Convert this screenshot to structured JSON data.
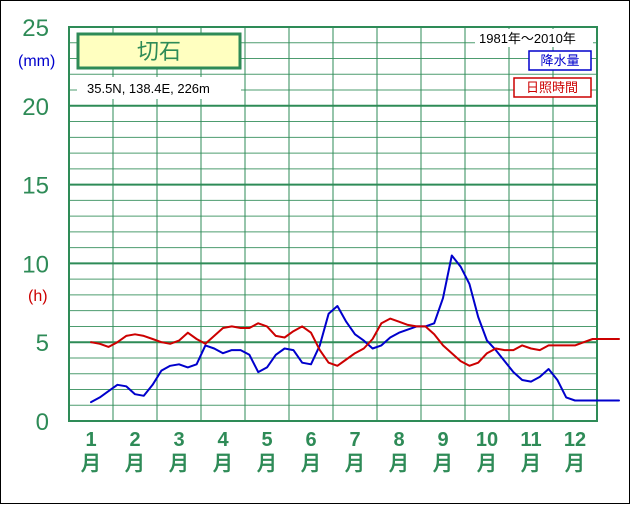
{
  "chart_data": {
    "type": "line",
    "title": "切石",
    "location": "35.5N,  138.4E,  226m",
    "period": "1981年〜2010年",
    "y_units": [
      "(mm)",
      "(h)"
    ],
    "ylim": [
      0,
      25
    ],
    "yticks": [
      "0",
      "5",
      "10",
      "15",
      "20",
      "25"
    ],
    "categories": [
      [
        "1",
        "月"
      ],
      [
        "2",
        "月"
      ],
      [
        "3",
        "月"
      ],
      [
        "4",
        "月"
      ],
      [
        "5",
        "月"
      ],
      [
        "6",
        "月"
      ],
      [
        "7",
        "月"
      ],
      [
        "8",
        "月"
      ],
      [
        "9",
        "月"
      ],
      [
        "10",
        "月"
      ],
      [
        "11",
        "月"
      ],
      [
        "12",
        "月"
      ]
    ],
    "grid": true,
    "legend_position": "top-right",
    "series": [
      {
        "name": "降水量",
        "color": "#0000cc",
        "x": [
          0.5,
          0.7,
          0.9,
          1.1,
          1.3,
          1.5,
          1.7,
          1.9,
          2.1,
          2.3,
          2.5,
          2.7,
          2.9,
          3.1,
          3.3,
          3.5,
          3.7,
          3.9,
          4.1,
          4.3,
          4.5,
          4.7,
          4.9,
          5.1,
          5.3,
          5.5,
          5.7,
          5.9,
          6.1,
          6.3,
          6.5,
          6.7,
          6.9,
          7.1,
          7.3,
          7.5,
          7.7,
          7.9,
          8.1,
          8.3,
          8.5,
          8.7,
          8.9,
          9.1,
          9.3,
          9.5,
          9.7,
          9.9,
          10.1,
          10.3,
          10.5,
          10.7,
          10.9,
          11.1,
          11.3,
          11.5,
          11.7,
          11.9,
          12.1,
          12.3,
          12.5
        ],
        "values": [
          1.2,
          1.5,
          1.9,
          2.3,
          2.2,
          1.7,
          1.6,
          2.3,
          3.2,
          3.5,
          3.6,
          3.4,
          3.6,
          4.8,
          4.6,
          4.3,
          4.5,
          4.5,
          4.2,
          3.1,
          3.4,
          4.2,
          4.6,
          4.5,
          3.7,
          3.6,
          4.8,
          6.8,
          7.3,
          6.3,
          5.5,
          5.1,
          4.6,
          4.8,
          5.3,
          5.6,
          5.8,
          6.0,
          6.0,
          6.2,
          7.8,
          10.5,
          9.8,
          8.7,
          6.6,
          5.1,
          4.5,
          3.8,
          3.1,
          2.6,
          2.5,
          2.8,
          3.3,
          2.6,
          1.5,
          1.3,
          1.3,
          1.3,
          1.3,
          1.3,
          1.3
        ]
      },
      {
        "name": "日照時間",
        "color": "#cc0000",
        "x": [
          0.5,
          0.7,
          0.9,
          1.1,
          1.3,
          1.5,
          1.7,
          1.9,
          2.1,
          2.3,
          2.5,
          2.7,
          2.9,
          3.1,
          3.3,
          3.5,
          3.7,
          3.9,
          4.1,
          4.3,
          4.5,
          4.7,
          4.9,
          5.1,
          5.3,
          5.5,
          5.7,
          5.9,
          6.1,
          6.3,
          6.5,
          6.7,
          6.9,
          7.1,
          7.3,
          7.5,
          7.7,
          7.9,
          8.1,
          8.3,
          8.5,
          8.7,
          8.9,
          9.1,
          9.3,
          9.5,
          9.7,
          9.9,
          10.1,
          10.3,
          10.5,
          10.7,
          10.9,
          11.1,
          11.3,
          11.5,
          11.7,
          11.9,
          12.1,
          12.3,
          12.5
        ],
        "values": [
          5.0,
          4.9,
          4.7,
          5.0,
          5.4,
          5.5,
          5.4,
          5.2,
          5.0,
          4.9,
          5.1,
          5.6,
          5.2,
          4.9,
          5.4,
          5.9,
          6.0,
          5.9,
          5.9,
          6.2,
          6.0,
          5.4,
          5.3,
          5.7,
          6.0,
          5.6,
          4.5,
          3.7,
          3.5,
          3.9,
          4.3,
          4.6,
          5.2,
          6.2,
          6.5,
          6.3,
          6.1,
          6.0,
          6.0,
          5.5,
          4.8,
          4.3,
          3.8,
          3.5,
          3.7,
          4.3,
          4.6,
          4.5,
          4.5,
          4.8,
          4.6,
          4.5,
          4.8,
          4.8,
          4.8,
          4.8,
          5.0,
          5.2,
          5.2,
          5.2,
          5.2
        ]
      }
    ]
  }
}
